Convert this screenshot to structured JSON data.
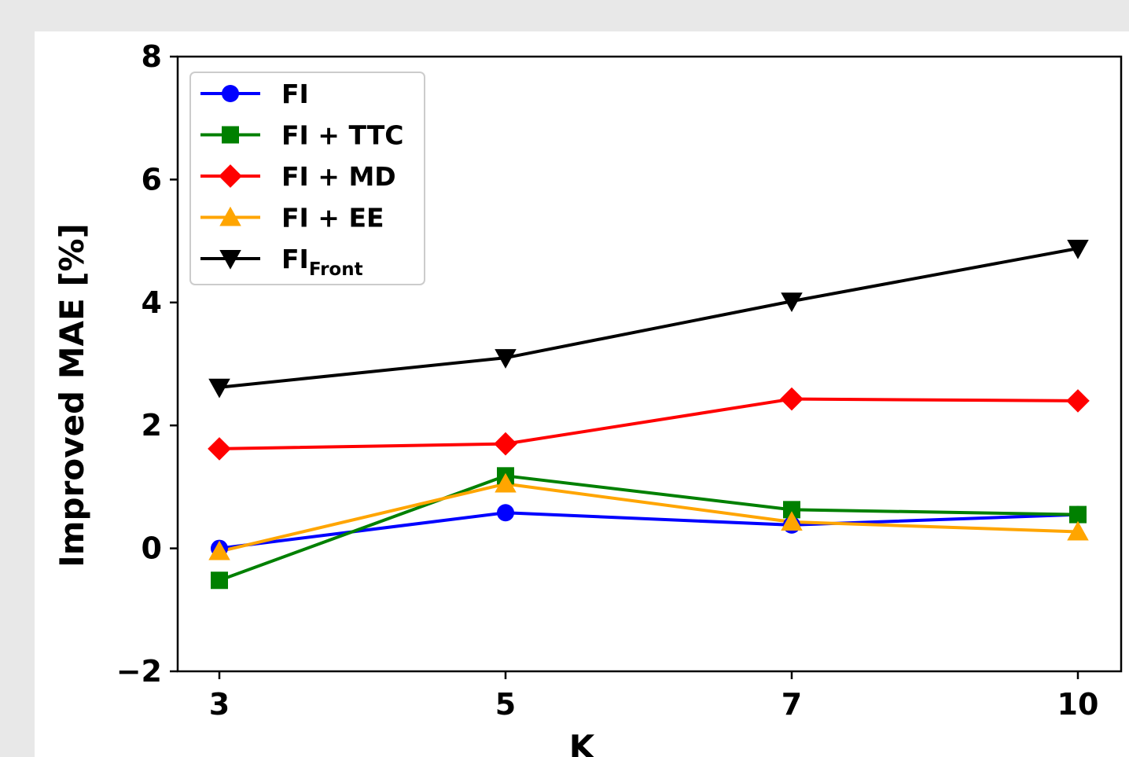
{
  "chart_data": {
    "type": "line",
    "xlabel": "K",
    "ylabel": "Improved MAE [%]",
    "ylim": [
      -2,
      8
    ],
    "categories": [
      "3",
      "5",
      "7",
      "10"
    ],
    "y_ticks": [
      "−2",
      "0",
      "2",
      "4",
      "6",
      "8"
    ],
    "grid": false,
    "legend_position": "top-left",
    "series": [
      {
        "name": "FI",
        "name_sub": "",
        "color": "#0000ff",
        "marker": "circle",
        "values": [
          0.0,
          0.58,
          0.38,
          0.55
        ]
      },
      {
        "name": "FI + TTC",
        "name_sub": "",
        "color": "#008000",
        "marker": "square",
        "values": [
          -0.52,
          1.18,
          0.63,
          0.55
        ]
      },
      {
        "name": "FI + MD",
        "name_sub": "",
        "color": "#ff0000",
        "marker": "diamond",
        "values": [
          1.62,
          1.7,
          2.43,
          2.4
        ]
      },
      {
        "name": "FI + EE",
        "name_sub": "",
        "color": "#ffa500",
        "marker": "triangle-up",
        "values": [
          -0.05,
          1.05,
          0.43,
          0.27
        ]
      },
      {
        "name": "FI",
        "name_sub": "Front",
        "color": "#000000",
        "marker": "triangle-down",
        "values": [
          2.62,
          3.1,
          4.02,
          4.88
        ]
      }
    ]
  }
}
